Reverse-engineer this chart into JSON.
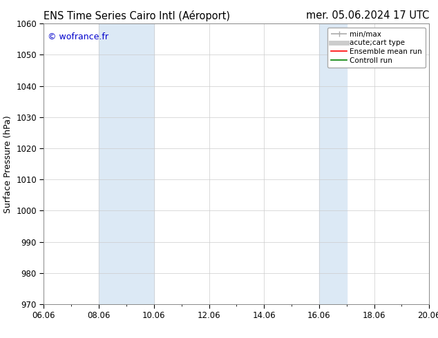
{
  "title_left": "ENS Time Series Cairo Intl (Aéroport)",
  "title_right": "mer. 05.06.2024 17 UTC",
  "ylabel": "Surface Pressure (hPa)",
  "ylim": [
    970,
    1060
  ],
  "yticks": [
    970,
    980,
    990,
    1000,
    1010,
    1020,
    1030,
    1040,
    1050,
    1060
  ],
  "xtick_labels": [
    "06.06",
    "08.06",
    "10.06",
    "12.06",
    "14.06",
    "16.06",
    "18.06",
    "20.06"
  ],
  "xtick_values": [
    0,
    2,
    4,
    6,
    8,
    10,
    12,
    14
  ],
  "xlim": [
    0,
    14
  ],
  "shaded_bands": [
    {
      "x_start": 2.0,
      "x_end": 4.0
    },
    {
      "x_start": 10.0,
      "x_end": 11.0
    }
  ],
  "shade_color": "#dce9f5",
  "watermark": "© wofrance.fr",
  "watermark_color": "#0000cc",
  "legend_entries": [
    {
      "label": "min/max",
      "color": "#aaaaaa",
      "lw": 1.2
    },
    {
      "label": "acute;cart type",
      "color": "#cccccc",
      "lw": 5
    },
    {
      "label": "Ensemble mean run",
      "color": "#ff0000",
      "lw": 1.2
    },
    {
      "label": "Controll run",
      "color": "#008000",
      "lw": 1.2
    }
  ],
  "bg_color": "#ffffff",
  "grid_color": "#cccccc",
  "title_fontsize": 10.5,
  "label_fontsize": 9,
  "tick_fontsize": 8.5,
  "legend_fontsize": 7.5
}
